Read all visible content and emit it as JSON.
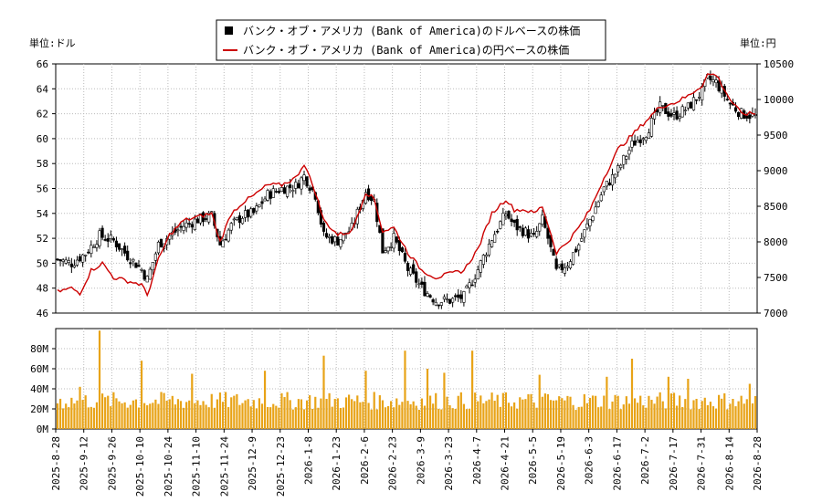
{
  "chart_data": {
    "type": "candlestick+line+bar",
    "legend": {
      "usd_label": "バンク・オブ・アメリカ (Bank of America)のドルベースの株価",
      "jpy_label": "バンク・オブ・アメリカ (Bank of America)の円ベースの株価",
      "placement": "top-center"
    },
    "left_unit": "単位:ドル",
    "right_unit": "単位:円",
    "price_axis": {
      "min": 46,
      "max": 66,
      "ticks": [
        46,
        48,
        50,
        52,
        54,
        56,
        58,
        60,
        62,
        64,
        66
      ]
    },
    "yen_axis": {
      "min": 7000,
      "max": 10500,
      "ticks": [
        7000,
        7500,
        8000,
        8500,
        9000,
        9500,
        10000,
        10500
      ]
    },
    "volume_axis": {
      "max": 100,
      "ticks": [
        "0M",
        "20M",
        "40M",
        "60M",
        "80M"
      ]
    },
    "x_ticks": [
      "2025-8-28",
      "2025-9-12",
      "2025-9-26",
      "2025-10-10",
      "2025-10-24",
      "2025-11-10",
      "2025-11-24",
      "2025-12-9",
      "2025-12-23",
      "2026-1-8",
      "2026-1-23",
      "2026-2-6",
      "2026-2-23",
      "2026-3-9",
      "2026-3-23",
      "2026-4-7",
      "2026-4-21",
      "2026-5-5",
      "2026-5-19",
      "2026-6-3",
      "2026-6-17",
      "2026-7-2",
      "2026-7-17",
      "2026-7-31",
      "2026-8-14",
      "2026-8-28"
    ],
    "usd_close_keypoints": [
      [
        0,
        50.3
      ],
      [
        5,
        50.0
      ],
      [
        10,
        50.8
      ],
      [
        15,
        52.2
      ],
      [
        20,
        51.8
      ],
      [
        25,
        50.6
      ],
      [
        30,
        49.5
      ],
      [
        32,
        48.7
      ],
      [
        36,
        51.5
      ],
      [
        40,
        52.2
      ],
      [
        45,
        53.0
      ],
      [
        50,
        53.5
      ],
      [
        55,
        53.8
      ],
      [
        58,
        51.5
      ],
      [
        62,
        53.0
      ],
      [
        66,
        53.8
      ],
      [
        70,
        54.0
      ],
      [
        75,
        55.5
      ],
      [
        80,
        56.0
      ],
      [
        85,
        56.2
      ],
      [
        88,
        57.0
      ],
      [
        92,
        55.5
      ],
      [
        95,
        52.2
      ],
      [
        100,
        51.8
      ],
      [
        105,
        52.8
      ],
      [
        110,
        55.8
      ],
      [
        113,
        55.0
      ],
      [
        116,
        51.0
      ],
      [
        120,
        52.0
      ],
      [
        125,
        49.5
      ],
      [
        130,
        48.0
      ],
      [
        135,
        47.0
      ],
      [
        140,
        47.0
      ],
      [
        145,
        47.3
      ],
      [
        150,
        49.5
      ],
      [
        155,
        52.0
      ],
      [
        160,
        54.0
      ],
      [
        163,
        53.0
      ],
      [
        167,
        52.5
      ],
      [
        170,
        52.0
      ],
      [
        173,
        53.5
      ],
      [
        175,
        52.0
      ],
      [
        178,
        49.3
      ],
      [
        182,
        50.0
      ],
      [
        186,
        51.5
      ],
      [
        190,
        53.5
      ],
      [
        195,
        56.0
      ],
      [
        200,
        57.5
      ],
      [
        205,
        59.5
      ],
      [
        210,
        60.5
      ],
      [
        215,
        62.5
      ],
      [
        220,
        61.8
      ],
      [
        225,
        62.5
      ],
      [
        230,
        63.8
      ],
      [
        232,
        64.8
      ],
      [
        235,
        64.5
      ],
      [
        240,
        62.8
      ],
      [
        244,
        62.0
      ],
      [
        249,
        61.8
      ]
    ],
    "jpy_close_keypoints": [
      [
        0,
        7300
      ],
      [
        5,
        7350
      ],
      [
        8,
        7280
      ],
      [
        12,
        7600
      ],
      [
        16,
        7700
      ],
      [
        20,
        7500
      ],
      [
        25,
        7450
      ],
      [
        30,
        7400
      ],
      [
        32,
        7250
      ],
      [
        36,
        7750
      ],
      [
        40,
        8100
      ],
      [
        45,
        8300
      ],
      [
        50,
        8350
      ],
      [
        55,
        8400
      ],
      [
        58,
        8000
      ],
      [
        62,
        8400
      ],
      [
        66,
        8550
      ],
      [
        70,
        8650
      ],
      [
        75,
        8800
      ],
      [
        80,
        8800
      ],
      [
        85,
        8900
      ],
      [
        88,
        9100
      ],
      [
        92,
        8700
      ],
      [
        95,
        8300
      ],
      [
        100,
        8100
      ],
      [
        105,
        8150
      ],
      [
        110,
        8700
      ],
      [
        113,
        8600
      ],
      [
        116,
        8150
      ],
      [
        120,
        8200
      ],
      [
        125,
        7850
      ],
      [
        130,
        7600
      ],
      [
        135,
        7500
      ],
      [
        140,
        7550
      ],
      [
        145,
        7600
      ],
      [
        150,
        7900
      ],
      [
        155,
        8400
      ],
      [
        160,
        8600
      ],
      [
        163,
        8450
      ],
      [
        167,
        8450
      ],
      [
        170,
        8400
      ],
      [
        173,
        8500
      ],
      [
        175,
        8250
      ],
      [
        178,
        7850
      ],
      [
        182,
        8000
      ],
      [
        186,
        8200
      ],
      [
        190,
        8450
      ],
      [
        195,
        8900
      ],
      [
        200,
        9300
      ],
      [
        205,
        9500
      ],
      [
        210,
        9700
      ],
      [
        215,
        9900
      ],
      [
        220,
        9950
      ],
      [
        225,
        10050
      ],
      [
        230,
        10200
      ],
      [
        232,
        10350
      ],
      [
        235,
        10350
      ],
      [
        240,
        10000
      ],
      [
        244,
        9800
      ],
      [
        249,
        9800
      ]
    ],
    "volume_baseline_m": 28,
    "volume_spikes_m": [
      [
        8,
        42
      ],
      [
        15,
        98
      ],
      [
        30,
        68
      ],
      [
        48,
        55
      ],
      [
        74,
        58
      ],
      [
        95,
        73
      ],
      [
        110,
        58
      ],
      [
        124,
        78
      ],
      [
        132,
        60
      ],
      [
        138,
        56
      ],
      [
        148,
        78
      ],
      [
        172,
        54
      ],
      [
        196,
        52
      ],
      [
        205,
        70
      ],
      [
        218,
        52
      ],
      [
        225,
        50
      ],
      [
        241,
        30
      ],
      [
        247,
        45
      ]
    ]
  }
}
